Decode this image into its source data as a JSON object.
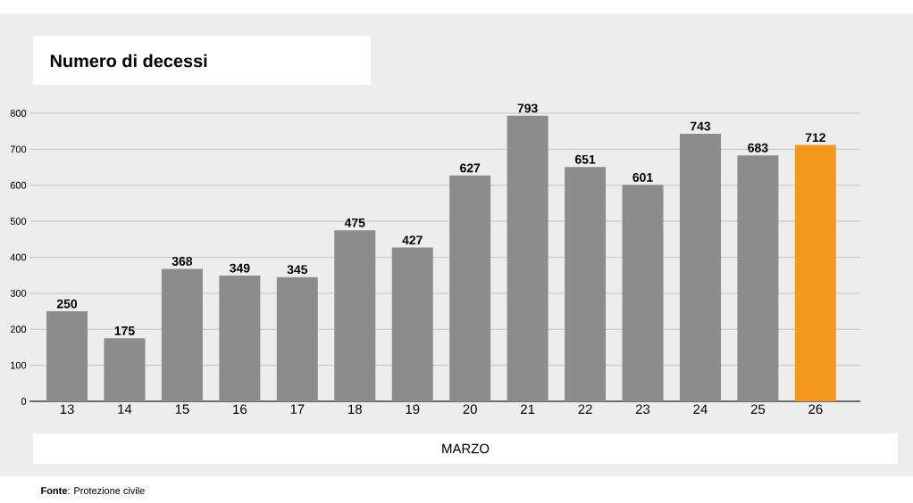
{
  "chart_data": {
    "type": "bar",
    "title": "Numero di decessi",
    "xlabel": "MARZO",
    "categories": [
      "13",
      "14",
      "15",
      "16",
      "17",
      "18",
      "19",
      "20",
      "21",
      "22",
      "23",
      "24",
      "25",
      "26"
    ],
    "values": [
      250,
      175,
      368,
      349,
      345,
      475,
      427,
      627,
      793,
      651,
      601,
      743,
      683,
      712
    ],
    "colors": [
      "#8c8c8c",
      "#8c8c8c",
      "#8c8c8c",
      "#8c8c8c",
      "#8c8c8c",
      "#8c8c8c",
      "#8c8c8c",
      "#8c8c8c",
      "#8c8c8c",
      "#8c8c8c",
      "#8c8c8c",
      "#8c8c8c",
      "#8c8c8c",
      "#f39a1e"
    ],
    "ylim": [
      0,
      800
    ],
    "yticks": [
      0,
      100,
      200,
      300,
      400,
      500,
      600,
      700,
      800
    ],
    "grid": "y",
    "data_labels": true,
    "annotations": [
      "**Fonte**: Protezione civile"
    ]
  }
}
